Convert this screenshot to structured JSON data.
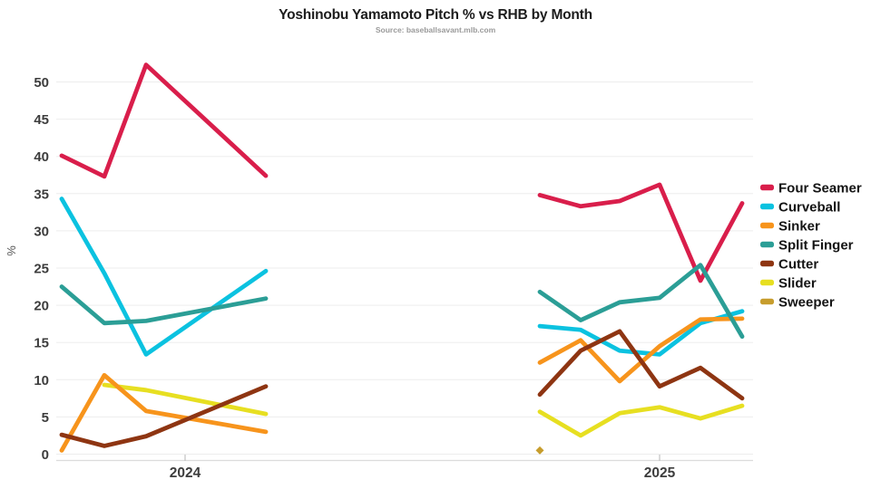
{
  "chart_data": {
    "type": "line",
    "title": "Yoshinobu Yamamoto Pitch % vs RHB by Month",
    "subtitle": "Source: baseballsavant.mlb.com",
    "ylabel": "%",
    "ylim": [
      0,
      54
    ],
    "yticks": [
      0,
      5,
      10,
      15,
      20,
      25,
      30,
      35,
      40,
      45,
      50
    ],
    "grid": true,
    "legend_position": "right",
    "x_axis": {
      "ticks": [
        {
          "label": "2024",
          "x": 204
        },
        {
          "label": "2025",
          "x": 727
        }
      ]
    },
    "series": [
      {
        "name": "Four Seamer",
        "color": "#d91e4b",
        "segments": [
          {
            "x": [
              68,
              115,
              161,
              293
            ],
            "y": [
              40.1,
              37.3,
              52.3,
              37.4
            ]
          },
          {
            "x": [
              595,
              640,
              683,
              727,
              772,
              818
            ],
            "y": [
              34.8,
              33.3,
              34.0,
              36.2,
              23.3,
              33.7
            ]
          }
        ]
      },
      {
        "name": "Curveball",
        "color": "#0bc2e0",
        "segments": [
          {
            "x": [
              68,
              115,
              161,
              293
            ],
            "y": [
              34.3,
              24.3,
              13.4,
              24.6
            ]
          },
          {
            "x": [
              595,
              640,
              683,
              727,
              772,
              818
            ],
            "y": [
              17.2,
              16.7,
              13.9,
              13.4,
              17.6,
              19.2
            ]
          }
        ]
      },
      {
        "name": "Sinker",
        "color": "#f7941c",
        "segments": [
          {
            "x": [
              68,
              115,
              161,
              293
            ],
            "y": [
              0.5,
              10.6,
              5.8,
              3.0
            ]
          },
          {
            "x": [
              595,
              640,
              683,
              727,
              772,
              818
            ],
            "y": [
              12.3,
              15.3,
              9.8,
              14.5,
              18.1,
              18.2
            ]
          }
        ]
      },
      {
        "name": "Split Finger",
        "color": "#2b9e96",
        "segments": [
          {
            "x": [
              68,
              115,
              161,
              293
            ],
            "y": [
              22.5,
              17.6,
              17.9,
              20.9
            ]
          },
          {
            "x": [
              595,
              640,
              683,
              727,
              772,
              818
            ],
            "y": [
              21.8,
              18.0,
              20.4,
              21.0,
              25.4,
              15.8
            ]
          }
        ]
      },
      {
        "name": "Cutter",
        "color": "#8e3512",
        "segments": [
          {
            "x": [
              68,
              115,
              161,
              293
            ],
            "y": [
              2.6,
              1.1,
              2.4,
              9.1
            ]
          },
          {
            "x": [
              595,
              640,
              683,
              727,
              772,
              818
            ],
            "y": [
              8.0,
              13.9,
              16.5,
              9.1,
              11.6,
              7.5
            ]
          }
        ]
      },
      {
        "name": "Slider",
        "color": "#e7df21",
        "segments": [
          {
            "x": [
              115,
              161,
              293
            ],
            "y": [
              9.3,
              8.6,
              5.4
            ]
          },
          {
            "x": [
              595,
              640,
              683,
              727,
              772,
              818
            ],
            "y": [
              5.7,
              2.5,
              5.5,
              6.3,
              4.8,
              6.5
            ]
          }
        ]
      },
      {
        "name": "Sweeper",
        "color": "#c79d2d",
        "segments": [
          {
            "x": [
              595
            ],
            "y": [
              0.5
            ],
            "marker": "diamond"
          }
        ]
      }
    ],
    "draw_order": [
      "Slider",
      "Curveball",
      "Four Seamer",
      "Sinker",
      "Cutter",
      "Split Finger",
      "Sweeper"
    ]
  }
}
